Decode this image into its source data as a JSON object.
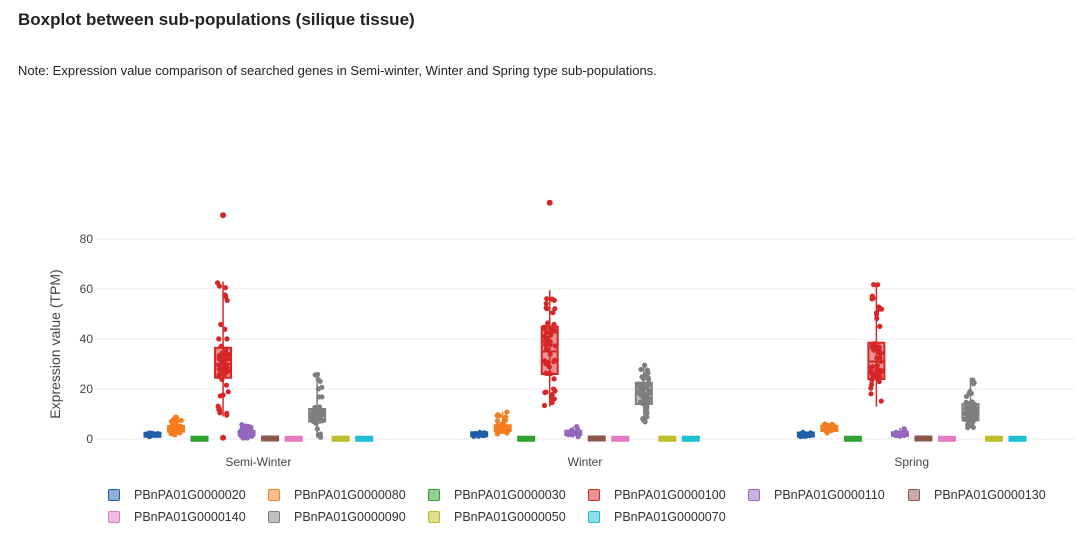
{
  "page": {
    "title": "Boxplot between sub-populations (silique tissue)",
    "note": "Note: Expression value comparison of searched genes in Semi-winter, Winter and Spring type sub-populations."
  },
  "chart_data": {
    "type": "box",
    "ylabel": "Expression value (TPM)",
    "ylim": [
      -6,
      100
    ],
    "yticks": [
      0,
      20,
      40,
      60,
      80
    ],
    "grid": true,
    "legend_position": "bottom",
    "categories": [
      "Semi-Winter",
      "Winter",
      "Spring"
    ],
    "series": [
      {
        "name": "PBnPA01G0000020",
        "color": "#1f5fa8",
        "boxes": [
          {
            "q1": 1.2,
            "median": 1.7,
            "q3": 2.2,
            "min": 0.8,
            "max": 2.6
          },
          {
            "q1": 1.4,
            "median": 1.9,
            "q3": 2.4,
            "min": 1.0,
            "max": 2.8
          },
          {
            "q1": 1.3,
            "median": 1.8,
            "q3": 2.3,
            "min": 0.9,
            "max": 2.7
          }
        ],
        "outliers": [
          [],
          [],
          []
        ]
      },
      {
        "name": "PBnPA01G0000080",
        "color": "#f57c1f",
        "boxes": [
          {
            "q1": 3.0,
            "median": 4.0,
            "q3": 5.2,
            "min": 1.5,
            "max": 9.0
          },
          {
            "q1": 3.2,
            "median": 4.2,
            "q3": 5.5,
            "min": 2.0,
            "max": 11.0
          },
          {
            "q1": 3.2,
            "median": 4.2,
            "q3": 5.2,
            "min": 2.5,
            "max": 6.0
          }
        ],
        "outliers": [
          [],
          [],
          []
        ]
      },
      {
        "name": "PBnPA01G0000030",
        "color": "#2ca02c",
        "boxes": [
          {
            "q1": 0.0,
            "median": 0.1,
            "q3": 0.2,
            "min": 0,
            "max": 0.4
          },
          {
            "q1": 0.0,
            "median": 0.1,
            "q3": 0.2,
            "min": 0,
            "max": 0.4
          },
          {
            "q1": 0.0,
            "median": 0.1,
            "q3": 0.2,
            "min": 0,
            "max": 0.4
          }
        ],
        "outliers": [
          [],
          [],
          []
        ]
      },
      {
        "name": "PBnPA01G0000100",
        "color": "#d62728",
        "boxes": [
          {
            "q1": 24.5,
            "median": 30.0,
            "q3": 36.5,
            "min": 9.0,
            "max": 63.0
          },
          {
            "q1": 26.0,
            "median": 35.0,
            "q3": 45.0,
            "min": 13.0,
            "max": 59.5
          },
          {
            "q1": 24.0,
            "median": 31.0,
            "q3": 38.5,
            "min": 13.0,
            "max": 62.5
          }
        ],
        "outliers": [
          [
            89.5,
            0.5
          ],
          [
            94.5
          ],
          []
        ]
      },
      {
        "name": "PBnPA01G0000110",
        "color": "#9467bd",
        "boxes": [
          {
            "q1": 1.5,
            "median": 2.3,
            "q3": 3.2,
            "min": 0.2,
            "max": 6.0
          },
          {
            "q1": 1.6,
            "median": 2.4,
            "q3": 3.3,
            "min": 0.5,
            "max": 5.0
          },
          {
            "q1": 1.2,
            "median": 1.9,
            "q3": 2.7,
            "min": 0.3,
            "max": 4.5
          }
        ],
        "outliers": [
          [],
          [],
          []
        ]
      },
      {
        "name": "PBnPA01G0000130",
        "color": "#8c564b",
        "boxes": [
          {
            "q1": 0.0,
            "median": 0.2,
            "q3": 0.4,
            "min": 0,
            "max": 0.8
          },
          {
            "q1": 0.0,
            "median": 0.2,
            "q3": 0.4,
            "min": 0,
            "max": 0.8
          },
          {
            "q1": 0.0,
            "median": 0.2,
            "q3": 0.4,
            "min": 0,
            "max": 0.8
          }
        ],
        "outliers": [
          [],
          [],
          []
        ]
      },
      {
        "name": "PBnPA01G0000140",
        "color": "#e377c2",
        "boxes": [
          {
            "q1": 0.0,
            "median": 0.1,
            "q3": 0.2,
            "min": 0,
            "max": 0.4
          },
          {
            "q1": 0.0,
            "median": 0.1,
            "q3": 0.2,
            "min": 0,
            "max": 0.4
          },
          {
            "q1": 0.0,
            "median": 0.1,
            "q3": 0.2,
            "min": 0,
            "max": 0.4
          }
        ],
        "outliers": [
          [],
          [],
          []
        ]
      },
      {
        "name": "PBnPA01G0000090",
        "color": "#7f7f7f",
        "boxes": [
          {
            "q1": 7.0,
            "median": 9.5,
            "q3": 12.0,
            "min": 0.5,
            "max": 26.0
          },
          {
            "q1": 14.0,
            "median": 18.0,
            "q3": 22.5,
            "min": 6.5,
            "max": 30.5
          },
          {
            "q1": 7.5,
            "median": 10.0,
            "q3": 14.0,
            "min": 4.5,
            "max": 24.5
          }
        ],
        "outliers": [
          [],
          [],
          []
        ]
      },
      {
        "name": "PBnPA01G0000050",
        "color": "#bcbd22",
        "boxes": [
          {
            "q1": 0.0,
            "median": 0.1,
            "q3": 0.2,
            "min": 0,
            "max": 0.3
          },
          {
            "q1": 0.0,
            "median": 0.1,
            "q3": 0.2,
            "min": 0,
            "max": 0.3
          },
          {
            "q1": 0.0,
            "median": 0.1,
            "q3": 0.2,
            "min": 0,
            "max": 0.3
          }
        ],
        "outliers": [
          [],
          [],
          []
        ]
      },
      {
        "name": "PBnPA01G0000070",
        "color": "#17becf",
        "boxes": [
          {
            "q1": 0.0,
            "median": 0.1,
            "q3": 0.2,
            "min": 0,
            "max": 0.3
          },
          {
            "q1": 0.0,
            "median": 0.1,
            "q3": 0.2,
            "min": 0,
            "max": 0.3
          },
          {
            "q1": 0.0,
            "median": 0.1,
            "q3": 0.2,
            "min": 0,
            "max": 0.3
          }
        ],
        "outliers": [
          [],
          [],
          []
        ]
      }
    ]
  }
}
